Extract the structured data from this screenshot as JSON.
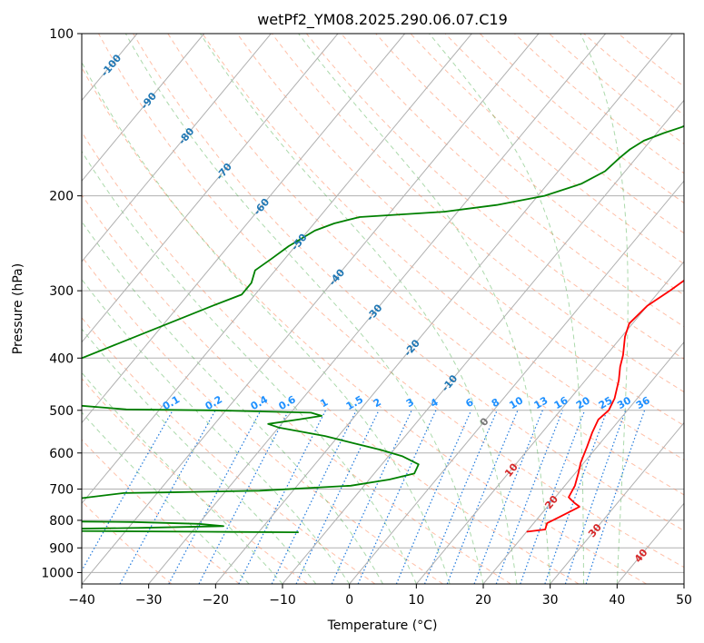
{
  "chart_data": {
    "type": "line",
    "title": "wetPf2_YM08.2025.290.06.07.C19",
    "xlabel": "Temperature (°C)",
    "ylabel": "Pressure (hPa)",
    "xlim": [
      -40,
      50
    ],
    "ylim": [
      1050,
      100
    ],
    "y_scale": "log",
    "grid": true,
    "x_ticks": [
      "−40",
      "−30",
      "−20",
      "−10",
      "0",
      "10",
      "20",
      "30",
      "40",
      "50"
    ],
    "y_ticks": [
      "100",
      "200",
      "300",
      "400",
      "500",
      "600",
      "700",
      "800",
      "900",
      "1000"
    ],
    "skew_isotherm_labels": [
      "-100",
      "-90",
      "-80",
      "-70",
      "-60",
      "-50",
      "-40",
      "-30",
      "-20",
      "-10",
      "0",
      "10",
      "20",
      "30",
      "40"
    ],
    "mixing_ratio_labels": [
      "0.1",
      "0.2",
      "0.4",
      "0.6",
      "1",
      "1.5",
      "2",
      "3",
      "4",
      "6",
      "8",
      "10",
      "13",
      "16",
      "20",
      "25",
      "30",
      "36"
    ],
    "series": [
      {
        "color": "#ff0000",
        "points": [
          [
            20,
            840
          ],
          [
            22.5,
            832
          ],
          [
            22,
            810
          ],
          [
            23,
            790
          ],
          [
            24.8,
            755
          ],
          [
            23.5,
            742
          ],
          [
            22,
            725
          ],
          [
            21.5,
            690
          ],
          [
            20.5,
            655
          ],
          [
            19.5,
            625
          ],
          [
            18.5,
            585
          ],
          [
            17.5,
            550
          ],
          [
            16.8,
            520
          ],
          [
            17.2,
            500
          ],
          [
            16.6,
            475
          ],
          [
            15,
            440
          ],
          [
            13.5,
            415
          ],
          [
            12.5,
            395
          ],
          [
            10.5,
            365
          ],
          [
            9.5,
            345
          ],
          [
            10,
            320
          ],
          [
            11.5,
            300
          ],
          [
            13,
            278
          ],
          [
            12.5,
            258
          ],
          [
            10.5,
            240
          ],
          [
            8,
            222
          ],
          [
            5.5,
            205
          ],
          [
            3.5,
            188
          ],
          [
            2,
            172
          ],
          [
            0.5,
            158
          ],
          [
            0,
            140
          ],
          [
            0,
            130
          ],
          [
            1,
            123
          ],
          [
            2.5,
            117
          ],
          [
            4.5,
            112
          ],
          [
            6.5,
            106
          ],
          [
            8.2,
            100
          ]
        ]
      },
      {
        "color": "#008000",
        "points": [
          [
            -14,
            842
          ],
          [
            -28,
            840
          ],
          [
            -42,
            838
          ],
          [
            -58,
            836
          ],
          [
            -62,
            832
          ],
          [
            -50,
            830
          ],
          [
            -38,
            826
          ],
          [
            -26,
            820
          ],
          [
            -30,
            812
          ],
          [
            -40,
            806
          ],
          [
            -54,
            803
          ],
          [
            -65,
            800
          ],
          [
            -62,
            760
          ],
          [
            -45,
            712
          ],
          [
            -39,
            710
          ],
          [
            -25,
            705
          ],
          [
            -12,
            690
          ],
          [
            -7,
            672
          ],
          [
            -4,
            655
          ],
          [
            -4.5,
            630
          ],
          [
            -8,
            608
          ],
          [
            -12,
            592
          ],
          [
            -17,
            575
          ],
          [
            -22,
            558
          ],
          [
            -30,
            538
          ],
          [
            -32,
            530
          ],
          [
            -28,
            520
          ],
          [
            -25,
            512
          ],
          [
            -27,
            505
          ],
          [
            -42,
            500
          ],
          [
            -55,
            498
          ],
          [
            -72,
            480
          ],
          [
            -68,
            400
          ],
          [
            -55,
            320
          ],
          [
            -52,
            305
          ],
          [
            -52,
            290
          ],
          [
            -53,
            275
          ],
          [
            -52,
            262
          ],
          [
            -51,
            248
          ],
          [
            -50,
            240
          ],
          [
            -49,
            232
          ],
          [
            -47,
            225
          ],
          [
            -44,
            219
          ],
          [
            -32,
            214
          ],
          [
            -25,
            208
          ],
          [
            -19,
            200
          ],
          [
            -15,
            190
          ],
          [
            -13,
            180
          ],
          [
            -12.5,
            170
          ],
          [
            -12,
            164
          ],
          [
            -11,
            158
          ],
          [
            -9,
            153
          ],
          [
            -7,
            149
          ],
          [
            -5.5,
            144
          ],
          [
            -4.5,
            136
          ],
          [
            -4.2,
            128
          ],
          [
            -4.5,
            120
          ],
          [
            -4,
            112
          ],
          [
            -2.5,
            106
          ],
          [
            -0.5,
            100
          ]
        ]
      }
    ]
  }
}
